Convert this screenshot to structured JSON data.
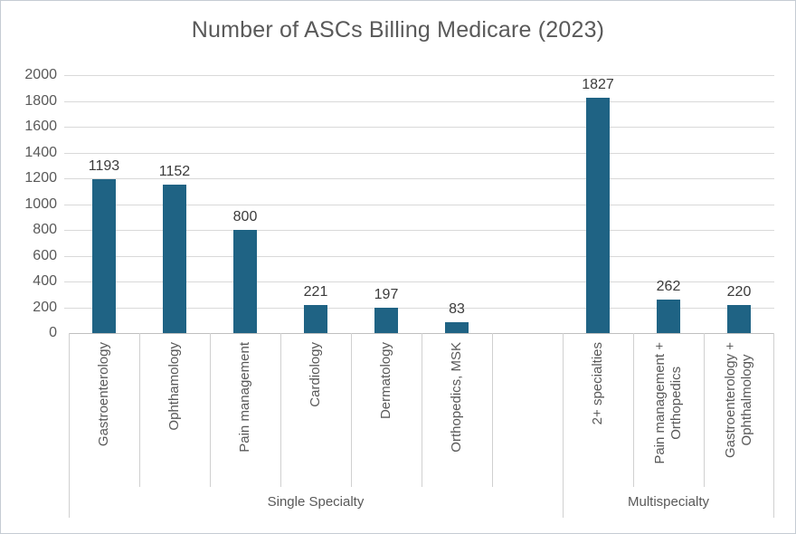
{
  "title": "Number of ASCs Billing Medicare (2023)",
  "chart_data": {
    "type": "bar",
    "title": "Number of ASCs Billing Medicare (2023)",
    "xlabel": "",
    "ylabel": "",
    "ylim": [
      0,
      2000
    ],
    "y_ticks": [
      0,
      200,
      400,
      600,
      800,
      1000,
      1200,
      1400,
      1600,
      1800,
      2000
    ],
    "grid": true,
    "legend": false,
    "groups": [
      {
        "label": "Single Specialty",
        "categories": [
          "Gastroenterology",
          "Ophthamology",
          "Pain management",
          "Cardiology",
          "Dermatology",
          "Orthopedics, MSK"
        ],
        "values": [
          1193,
          1152,
          800,
          221,
          197,
          83
        ]
      },
      {
        "label": "Multispecialty",
        "categories": [
          "2+ specialties",
          "Pain management +\nOrthopedics",
          "Gastroenterology +\nOphthalmology"
        ],
        "values": [
          1827,
          262,
          220
        ]
      }
    ],
    "colors": {
      "bar": "#1f6384",
      "gridline": "#d9d9d9",
      "axis_line": "#bfbfbf",
      "table_line": "#d0d0d0",
      "text": "#595959",
      "value_label": "#3b3b3b",
      "border": "#c5ccd3"
    }
  }
}
